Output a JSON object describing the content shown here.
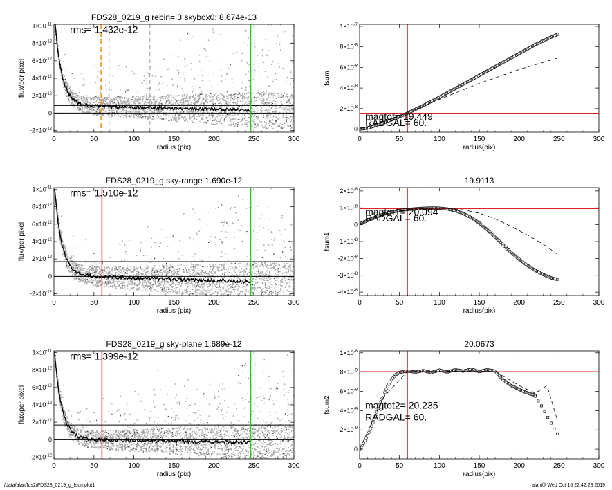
{
  "footer": {
    "left": "/data/alan/fds2/FDS28_0219_g_fsumplot1",
    "right": "alan@  Wed Oct 16 22:42:28 2019"
  },
  "chart_data": [
    {
      "id": "p1",
      "type": "scatter",
      "title": "FDS28_0219_g rebin= 3   skybox0:  8.674e-13",
      "xlabel": "radius (pix)",
      "ylabel": "flux/per pixel",
      "xlim": [
        0,
        300
      ],
      "ylim": [
        -2.2e-12,
        1.02e-11
      ],
      "xticks": [
        0,
        50,
        100,
        150,
        200,
        250,
        300
      ],
      "yticks": [
        {
          "v": -2e-12,
          "m": "-2",
          "e": "-12"
        },
        {
          "v": 0,
          "m": "0",
          "e": ""
        },
        {
          "v": 2e-12,
          "m": "2",
          "e": "-12"
        },
        {
          "v": 4e-12,
          "m": "4",
          "e": "-12"
        },
        {
          "v": 6e-12,
          "m": "6",
          "e": "-12"
        },
        {
          "v": 8e-12,
          "m": "8",
          "e": "-12"
        },
        {
          "v": 1e-11,
          "m": "1",
          "e": "-11"
        }
      ],
      "annotations": [
        {
          "text": "rms= 1.432e-12",
          "x": 20,
          "y": 9.2e-12
        }
      ],
      "hlines": [
        {
          "y": 0,
          "color": "#000000"
        },
        {
          "y": 8.674e-13,
          "color": "#000000"
        }
      ],
      "vlines": [
        {
          "x": 59,
          "color": "#f0a030",
          "dash": "7,4",
          "width": 2
        },
        {
          "x": 69,
          "color": "#999999",
          "dash": "6,4",
          "width": 1
        },
        {
          "x": 120,
          "color": "#999999",
          "dash": "6,4",
          "width": 1
        },
        {
          "x": 246,
          "color": "#22cc22",
          "dash": "",
          "width": 1.5
        }
      ],
      "profile": {
        "amp": 1.1e-11,
        "scale": 9,
        "floor": 8.6e-13,
        "slope": -2e-15
      },
      "scatter": {
        "seed": 11,
        "spread": 1.3e-12,
        "tail": 2.6e-12
      }
    },
    {
      "id": "p2",
      "type": "line",
      "title": "",
      "xlabel": "radius(pix)",
      "ylabel": "fsum",
      "xlim": [
        0,
        300
      ],
      "ylim": [
        -3e-09,
        1.02e-07
      ],
      "xticks": [
        0,
        50,
        100,
        150,
        200,
        250,
        300
      ],
      "yticks": [
        {
          "v": 0,
          "m": "0",
          "e": ""
        },
        {
          "v": 2e-08,
          "m": "2",
          "e": "-8"
        },
        {
          "v": 4e-08,
          "m": "4",
          "e": "-8"
        },
        {
          "v": 6e-08,
          "m": "6",
          "e": "-8"
        },
        {
          "v": 8e-08,
          "m": "8",
          "e": "-8"
        },
        {
          "v": 1e-07,
          "m": "1",
          "e": "-7"
        }
      ],
      "annotations": [
        {
          "text": "magtot=  19.449",
          "x": 7,
          "y": 9e-09
        },
        {
          "text": "RADGAL=    60.",
          "x": 7,
          "y": 3e-09
        }
      ],
      "hlines": [
        {
          "y": 1.55e-08,
          "color": "#dd2222"
        }
      ],
      "vlines": [
        {
          "x": 60,
          "color": "#dd2222",
          "dash": "",
          "width": 1.2
        }
      ],
      "series": [
        {
          "name": "fsum",
          "style": "markers",
          "x": [
            0,
            10,
            20,
            30,
            40,
            50,
            60,
            80,
            100,
            120,
            140,
            160,
            180,
            200,
            220,
            240,
            248
          ],
          "y": [
            0,
            1e-09,
            3.5e-09,
            6.2e-09,
            9e-09,
            1.2e-08,
            1.55e-08,
            2.3e-08,
            3.1e-08,
            3.95e-08,
            4.8e-08,
            5.65e-08,
            6.5e-08,
            7.35e-08,
            8.2e-08,
            8.95e-08,
            9.2e-08
          ]
        },
        {
          "name": "model",
          "style": "dash",
          "x": [
            0,
            60,
            100,
            150,
            200,
            248
          ],
          "y": [
            0,
            1.55e-08,
            2.9e-08,
            4.45e-08,
            5.8e-08,
            6.9e-08
          ]
        }
      ]
    },
    {
      "id": "p3",
      "type": "scatter",
      "title": "FDS28_0219_g sky-range  1.690e-12",
      "xlabel": "radius (pix)",
      "ylabel": "flux/per pixel",
      "xlim": [
        0,
        300
      ],
      "ylim": [
        -2.2e-12,
        1.02e-11
      ],
      "xticks": [
        0,
        50,
        100,
        150,
        200,
        250,
        300
      ],
      "yticks": [
        {
          "v": -2e-12,
          "m": "-2",
          "e": "-12"
        },
        {
          "v": 0,
          "m": "0",
          "e": ""
        },
        {
          "v": 2e-12,
          "m": "2",
          "e": "-12"
        },
        {
          "v": 4e-12,
          "m": "4",
          "e": "-12"
        },
        {
          "v": 6e-12,
          "m": "6",
          "e": "-12"
        },
        {
          "v": 8e-12,
          "m": "8",
          "e": "-12"
        },
        {
          "v": 1e-11,
          "m": "1",
          "e": "-11"
        }
      ],
      "annotations": [
        {
          "text": "rms= 1.510e-12",
          "x": 20,
          "y": 9.2e-12
        }
      ],
      "hlines": [
        {
          "y": 0,
          "color": "#000000"
        },
        {
          "y": 1.69e-12,
          "color": "#000000"
        }
      ],
      "vlines": [
        {
          "x": 60,
          "color": "#dd2222",
          "dash": "",
          "width": 1.5
        },
        {
          "x": 246,
          "color": "#22cc22",
          "dash": "",
          "width": 1.5
        }
      ],
      "profile": {
        "amp": 1.1e-11,
        "scale": 9,
        "floor": 1.2e-13,
        "slope": -3e-15
      },
      "scatter": {
        "seed": 23,
        "spread": 1.4e-12,
        "tail": 2.6e-12
      }
    },
    {
      "id": "p4",
      "type": "line",
      "title": "19.9113",
      "xlabel": "radius(pix)",
      "ylabel": "fsum1",
      "xlim": [
        0,
        300
      ],
      "ylim": [
        -4.2e-08,
        2.2e-08
      ],
      "xticks": [
        0,
        50,
        100,
        150,
        200,
        250,
        300
      ],
      "yticks": [
        {
          "v": -4e-08,
          "m": "-4",
          "e": "-8"
        },
        {
          "v": -3e-08,
          "m": "-3",
          "e": "-8"
        },
        {
          "v": -2e-08,
          "m": "-2",
          "e": "-8"
        },
        {
          "v": -1e-08,
          "m": "-1",
          "e": "-8"
        },
        {
          "v": 0,
          "m": "0",
          "e": ""
        },
        {
          "v": 1e-08,
          "m": "1",
          "e": "-8"
        },
        {
          "v": 2e-08,
          "m": "2",
          "e": "-8"
        }
      ],
      "annotations": [
        {
          "text": "magtot1=  20.094",
          "x": 7,
          "y": 5.5e-09
        },
        {
          "text": "RADGAL=    60.",
          "x": 7,
          "y": 2e-09
        }
      ],
      "hlines": [
        {
          "y": 9.5e-09,
          "color": "#dd2222"
        }
      ],
      "vlines": [
        {
          "x": 60,
          "color": "#dd2222",
          "dash": "",
          "width": 1.2
        }
      ],
      "series": [
        {
          "name": "fsum1",
          "style": "markers",
          "x": [
            0,
            10,
            20,
            30,
            40,
            50,
            60,
            70,
            80,
            90,
            100,
            110,
            120,
            130,
            140,
            150,
            160,
            170,
            180,
            190,
            200,
            210,
            220,
            230,
            240,
            248
          ],
          "y": [
            5e-10,
            2.5e-09,
            4.5e-09,
            6.2e-09,
            7.4e-09,
            8.4e-09,
            9e-09,
            9.4e-09,
            9.7e-09,
            9.9e-09,
            9.8e-09,
            9.3e-09,
            8.3e-09,
            6.6e-09,
            4.2e-09,
            1e-09,
            -3e-09,
            -7.5e-09,
            -1.2e-08,
            -1.65e-08,
            -2.05e-08,
            -2.4e-08,
            -2.7e-08,
            -2.95e-08,
            -3.15e-08,
            -3.25e-08
          ]
        },
        {
          "name": "model",
          "style": "dash",
          "x": [
            0,
            30,
            60,
            90,
            110,
            130,
            150,
            170,
            190,
            210,
            230,
            248
          ],
          "y": [
            5e-10,
            6e-09,
            9e-09,
            1e-08,
            9.8e-09,
            8.8e-09,
            6.8e-09,
            3.5e-09,
            -1e-09,
            -6e-09,
            -1.15e-08,
            -1.75e-08
          ]
        }
      ]
    },
    {
      "id": "p5",
      "type": "scatter",
      "title": "FDS28_0219_g sky-plane  1.689e-12",
      "xlabel": "radius (pix)",
      "ylabel": "flux/per pixel",
      "xlim": [
        0,
        300
      ],
      "ylim": [
        -2.2e-12,
        1.02e-11
      ],
      "xticks": [
        0,
        50,
        100,
        150,
        200,
        250,
        300
      ],
      "yticks": [
        {
          "v": -2e-12,
          "m": "-2",
          "e": "-12"
        },
        {
          "v": 0,
          "m": "0",
          "e": ""
        },
        {
          "v": 2e-12,
          "m": "2",
          "e": "-12"
        },
        {
          "v": 4e-12,
          "m": "4",
          "e": "-12"
        },
        {
          "v": 6e-12,
          "m": "6",
          "e": "-12"
        },
        {
          "v": 8e-12,
          "m": "8",
          "e": "-12"
        },
        {
          "v": 1e-11,
          "m": "1",
          "e": "-11"
        }
      ],
      "annotations": [
        {
          "text": "rms= 1.399e-12",
          "x": 20,
          "y": 9.2e-12
        }
      ],
      "hlines": [
        {
          "y": 0,
          "color": "#000000"
        },
        {
          "y": 1.689e-12,
          "color": "#000000"
        }
      ],
      "vlines": [
        {
          "x": 60,
          "color": "#dd2222",
          "dash": "",
          "width": 1.5
        },
        {
          "x": 246,
          "color": "#22cc22",
          "dash": "",
          "width": 1.5
        }
      ],
      "profile": {
        "amp": 1.1e-11,
        "scale": 9,
        "floor": 5e-14,
        "slope": -1.5e-15
      },
      "scatter": {
        "seed": 37,
        "spread": 1.3e-12,
        "tail": 2.4e-12
      }
    },
    {
      "id": "p6",
      "type": "line",
      "title": "20.0673",
      "xlabel": "radius(pix)",
      "ylabel": "fsum2",
      "xlim": [
        0,
        300
      ],
      "ylim": [
        -1e-09,
        1.02e-08
      ],
      "xticks": [
        0,
        50,
        100,
        150,
        200,
        250,
        300
      ],
      "yticks": [
        {
          "v": 0,
          "m": "0",
          "e": ""
        },
        {
          "v": 2e-09,
          "m": "2",
          "e": "-9"
        },
        {
          "v": 4e-09,
          "m": "4",
          "e": "-9"
        },
        {
          "v": 6e-09,
          "m": "6",
          "e": "-9"
        },
        {
          "v": 8e-09,
          "m": "8",
          "e": "-9"
        },
        {
          "v": 1e-08,
          "m": "1",
          "e": "-8"
        }
      ],
      "annotations": [
        {
          "text": "magtot2=  20.235",
          "x": 7,
          "y": 4.2e-09
        },
        {
          "text": "RADGAL=    60.",
          "x": 7,
          "y": 3e-09
        }
      ],
      "hlines": [
        {
          "y": 8.05e-09,
          "color": "#dd2222"
        }
      ],
      "vlines": [
        {
          "x": 60,
          "color": "#dd2222",
          "dash": "",
          "width": 1.2
        }
      ],
      "series": [
        {
          "name": "fsum2",
          "style": "markers",
          "x": [
            0,
            5,
            10,
            15,
            20,
            25,
            30,
            35,
            40,
            45,
            50,
            55,
            60,
            70,
            80,
            90,
            100,
            110,
            120,
            130,
            140,
            150,
            160,
            170,
            175,
            180,
            185,
            190,
            195,
            200,
            205,
            210,
            215,
            220
          ],
          "y": [
            0,
            6e-10,
            1.4e-09,
            2.4e-09,
            3.5e-09,
            4.6e-09,
            5.6e-09,
            6.5e-09,
            7.2e-09,
            7.7e-09,
            7.95e-09,
            8.05e-09,
            8.1e-09,
            8e-09,
            8.15e-09,
            7.95e-09,
            8.2e-09,
            8e-09,
            8.25e-09,
            8.1e-09,
            8.3e-09,
            8.05e-09,
            8.25e-09,
            8.1e-09,
            7.6e-09,
            7.2e-09,
            6.9e-09,
            6.6e-09,
            6.4e-09,
            6.2e-09,
            6e-09,
            5.85e-09,
            5.7e-09,
            5.6e-09
          ]
        },
        {
          "name": "tail",
          "style": "squares",
          "x": [
            220,
            224,
            228,
            232,
            236,
            240,
            244,
            248
          ],
          "y": [
            5.5e-09,
            5e-09,
            4.5e-09,
            3.9e-09,
            3.3e-09,
            2.7e-09,
            2.1e-09,
            1.6e-09
          ]
        },
        {
          "name": "model",
          "style": "dash",
          "x": [
            0,
            30,
            60,
            100,
            140,
            170,
            200,
            220,
            235,
            248
          ],
          "y": [
            0,
            5.4e-09,
            8.05e-09,
            8.05e-09,
            8.1e-09,
            8.05e-09,
            6.6e-09,
            5.8e-09,
            6.6e-09,
            3e-09
          ]
        }
      ]
    }
  ]
}
